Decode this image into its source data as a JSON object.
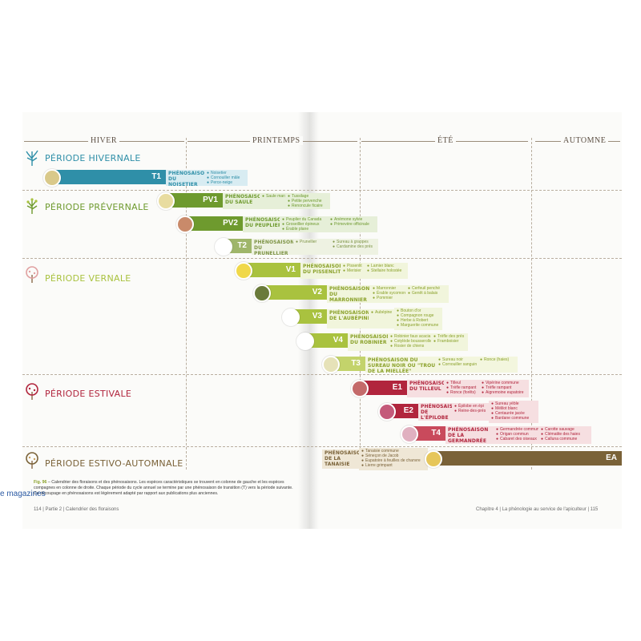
{
  "seasons": [
    "HIVER",
    "PRINTEMPS",
    "ÉTÉ",
    "AUTOMNE"
  ],
  "periods": [
    {
      "name": "PÉRIODE HIVERNALE",
      "color": "#2f8fa8"
    },
    {
      "name": "PÉRIODE PRÉVERNALE",
      "color": "#6e9a2e"
    },
    {
      "name": "PÉRIODE VERNALE",
      "color": "#a9c23f"
    },
    {
      "name": "PÉRIODE ESTIVALE",
      "color": "#b1253d"
    },
    {
      "name": "PÉRIODE ESTIVO-AUTOMNALE",
      "color": "#7a6238"
    }
  ],
  "phenoseasons": [
    {
      "code": "T1",
      "label": "PHÉNOSAISON DU NOISETIER",
      "color": "#2f8fa8",
      "light": "#d8ecf2",
      "species_a": [
        "Noisetier",
        "Cornouiller mâle",
        "Perce-neige"
      ],
      "species_b": []
    },
    {
      "code": "PV1",
      "label": "PHÉNOSAISON DU SAULE",
      "color": "#6e9a2e",
      "light": "#e6efd8",
      "species_a": [
        "Saule marsault"
      ],
      "species_b": [
        "Tussilage",
        "Petite pervenche",
        "Renoncule ficaire"
      ]
    },
    {
      "code": "PV2",
      "label": "PHÉNOSAISON DU PEUPLIER",
      "color": "#6e9a2e",
      "light": "#e6efd8",
      "species_a": [
        "Peuplier du Canada",
        "Groseillier épineux",
        "Érable plane"
      ],
      "species_b": [
        "Anémone sylvie",
        "Primevère officinale"
      ]
    },
    {
      "code": "T2",
      "label": "PHÉNOSAISON DU PRUNELLIER",
      "color": "#9fb66a",
      "light": "#eef2e2",
      "species_a": [
        "Prunellier"
      ],
      "species_b": [
        "Sureau à grappes",
        "Cardamine des prés"
      ]
    },
    {
      "code": "V1",
      "label": "PHÉNOSAISON DU PISSENLIT",
      "color": "#a9c23f",
      "light": "#f1f5dc",
      "species_a": [
        "Pissenlit",
        "Merisier"
      ],
      "species_b": [
        "Lamier blanc",
        "Stellaire holostée"
      ]
    },
    {
      "code": "V2",
      "label": "PHÉNOSAISON DU MARRONNIER",
      "color": "#a9c23f",
      "light": "#f1f5dc",
      "species_a": [
        "Marronnier",
        "Érable sycomore",
        "Pommier"
      ],
      "species_b": [
        "Cerfeuil penché",
        "Genêt à balais"
      ]
    },
    {
      "code": "V3",
      "label": "PHÉNOSAISON DE L'AUBÉPINE",
      "color": "#a9c23f",
      "light": "#f1f5dc",
      "species_a": [
        "Aubépine"
      ],
      "species_b": [
        "Bouton d'or",
        "Compagnon rouge",
        "Herbe à Robert",
        "Marguerite commune"
      ]
    },
    {
      "code": "V4",
      "label": "PHÉNOSAISON DU ROBINIER",
      "color": "#a9c23f",
      "light": "#f1f5dc",
      "species_a": [
        "Robinier faux acacia",
        "Cotylède bousserolle",
        "Rosier de chiens"
      ],
      "species_b": [
        "Trèfle des prés",
        "Framboisier"
      ]
    },
    {
      "code": "T3",
      "label": "PHÉNOSAISON DU SUREAU NOIR OU \"TROU DE LA MIELLÉE\"",
      "color": "#c3d36b",
      "light": "#f3f6de",
      "species_a": [
        "Sureau noir",
        "Cornouiller sanguin"
      ],
      "species_b": [
        "Ronce (haies)"
      ]
    },
    {
      "code": "E1",
      "label": "PHÉNOSAISON DU TILLEUL",
      "color": "#b1253d",
      "light": "#f6dfe1",
      "species_a": [
        "Tilleul",
        "Trèfle rampant",
        "Ronce (forêts)"
      ],
      "species_b": [
        "Vipérine commune",
        "Trèfle rampant",
        "Aigremoine eupatoire"
      ]
    },
    {
      "code": "E2",
      "label": "PHÉNOSAISON DE L'ÉPILOBE",
      "color": "#b1253d",
      "light": "#f6dfe1",
      "species_a": [
        "Épilobe en épi",
        "Reine-des-prés"
      ],
      "species_b": [
        "Sureau yèble",
        "Mélilot blanc",
        "Centaurée jacée",
        "Bardane commune"
      ]
    },
    {
      "code": "T4",
      "label": "PHÉNOSAISON DE LA GERMANDRÉE",
      "color": "#c94a5c",
      "light": "#f6dfe1",
      "species_a": [
        "Germandrée commune",
        "Origan commun",
        "Cabaret des oiseaux"
      ],
      "species_b": [
        "Carotte sauvage",
        "Clématite des haies",
        "Calluna commune"
      ]
    },
    {
      "code": "EA",
      "label": "PHÉNOSAISON DE LA TANAISIE",
      "color": "#7a6238",
      "light": "#efe7d6",
      "species_a": [
        "Tanaisie commune",
        "Séneçon de Jacob",
        "Eupatoire à feuilles de chanvre",
        "Lierre grimpant"
      ],
      "species_b": []
    }
  ],
  "caption": {
    "fig": "Fig. 96",
    "text": "Calendrier des floraisons et des phénosaisons. Les espèces caractéristiques se trouvent en colonne de gauche et les espèces compagnes en colonne de droite. Chaque période du cycle annuel se termine par une phénosaison de transition (T) vers la période suivante. Ce découpage en phénosaisons est légèrement adapté par rapport aux publications plus anciennes."
  },
  "folio_left": "114 | Partie 2 | Calendrier des floraisons",
  "folio_right": "Chapitre 4 | La phénologie au service de l'apiculteur | 115",
  "watermark": "e magazines"
}
